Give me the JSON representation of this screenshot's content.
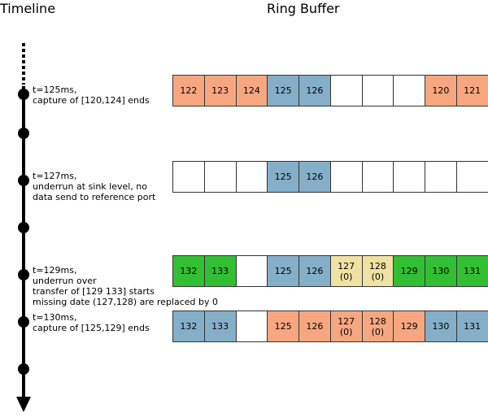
{
  "headers": {
    "timeline": "Timeline",
    "ring_buffer": "Ring Buffer"
  },
  "colors": {
    "capture": "#f7a780",
    "transfer": "#85afc9",
    "sent": "#33bf33",
    "zero_fill": "#f0e2a4",
    "empty": "#ffffff",
    "border": "#333333",
    "axis": "#000000"
  },
  "events": [
    {
      "lines": [
        "t=125ms,",
        "capture of [120,124] ends"
      ]
    },
    {
      "lines": [
        "t=127ms,",
        "underrun at sink level, no",
        "data send to reference port"
      ]
    },
    {
      "lines": [
        "t=129ms,",
        "underrun over",
        "transfer of [129 133] starts",
        "missing date (127,128) are replaced by 0"
      ]
    },
    {
      "lines": [
        "t=130ms,",
        "capture of [125,129] ends"
      ]
    }
  ],
  "buffers": [
    {
      "cells": [
        {
          "value": "122",
          "state": "capture"
        },
        {
          "value": "123",
          "state": "capture"
        },
        {
          "value": "124",
          "state": "capture"
        },
        {
          "value": "125",
          "state": "transfer"
        },
        {
          "value": "126",
          "state": "transfer"
        },
        {
          "value": "",
          "state": "empty"
        },
        {
          "value": "",
          "state": "empty"
        },
        {
          "value": "",
          "state": "empty"
        },
        {
          "value": "120",
          "state": "capture"
        },
        {
          "value": "121",
          "state": "capture"
        }
      ]
    },
    {
      "cells": [
        {
          "value": "",
          "state": "empty"
        },
        {
          "value": "",
          "state": "empty"
        },
        {
          "value": "",
          "state": "empty"
        },
        {
          "value": "125",
          "state": "transfer"
        },
        {
          "value": "126",
          "state": "transfer"
        },
        {
          "value": "",
          "state": "empty"
        },
        {
          "value": "",
          "state": "empty"
        },
        {
          "value": "",
          "state": "empty"
        },
        {
          "value": "",
          "state": "empty"
        },
        {
          "value": "",
          "state": "empty"
        }
      ]
    },
    {
      "cells": [
        {
          "value": "132",
          "state": "sent"
        },
        {
          "value": "133",
          "state": "sent"
        },
        {
          "value": "",
          "state": "empty"
        },
        {
          "value": "125",
          "state": "transfer"
        },
        {
          "value": "126",
          "state": "transfer"
        },
        {
          "value": "127",
          "sub": "(0)",
          "state": "zero_fill"
        },
        {
          "value": "128",
          "sub": "(0)",
          "state": "zero_fill"
        },
        {
          "value": "129",
          "state": "sent"
        },
        {
          "value": "130",
          "state": "sent"
        },
        {
          "value": "131",
          "state": "sent"
        }
      ]
    },
    {
      "cells": [
        {
          "value": "132",
          "state": "transfer"
        },
        {
          "value": "133",
          "state": "transfer"
        },
        {
          "value": "",
          "state": "empty"
        },
        {
          "value": "125",
          "state": "capture"
        },
        {
          "value": "126",
          "state": "capture"
        },
        {
          "value": "127",
          "sub": "(0)",
          "state": "capture"
        },
        {
          "value": "128",
          "sub": "(0)",
          "state": "capture"
        },
        {
          "value": "129",
          "state": "capture"
        },
        {
          "value": "130",
          "state": "transfer"
        },
        {
          "value": "131",
          "state": "transfer"
        }
      ]
    }
  ]
}
